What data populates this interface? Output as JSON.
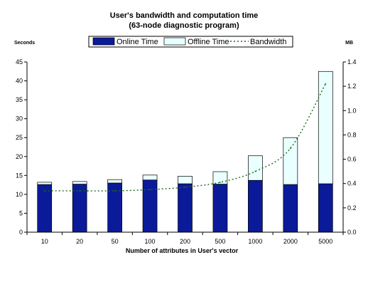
{
  "chart_data": {
    "type": "bar",
    "title": [
      "User's bandwidth and computation time",
      "(63-node diagnostic program)"
    ],
    "xlabel": "Number of attributes in User's vector",
    "ylabel_left": "Seconds",
    "ylabel_right": "MB",
    "categories": [
      "10",
      "20",
      "50",
      "100",
      "200",
      "500",
      "1000",
      "2000",
      "5000"
    ],
    "stacked": true,
    "ylim_left": [
      0,
      45
    ],
    "ylim_right": [
      0,
      1.4
    ],
    "yticks_left": [
      "0",
      "5",
      "10",
      "15",
      "20",
      "25",
      "30",
      "35",
      "40",
      "45"
    ],
    "yticks_right": [
      "0.0",
      "0.2",
      "0.4",
      "0.6",
      "0.8",
      "1.0",
      "1.2",
      "1.4"
    ],
    "series": [
      {
        "name": "Online Time",
        "axis": "left",
        "kind": "bar",
        "color": "#0a1a99",
        "values": [
          12.6,
          12.7,
          13.0,
          13.8,
          12.8,
          12.7,
          13.7,
          12.6,
          12.8
        ]
      },
      {
        "name": "Offline Time",
        "axis": "left",
        "kind": "bar",
        "color": "#eaffff",
        "values": [
          0.6,
          0.7,
          0.9,
          1.3,
          2.0,
          3.3,
          6.5,
          12.4,
          29.7
        ]
      },
      {
        "name": "Bandwidth",
        "axis": "right",
        "kind": "line",
        "style": "dotted",
        "color": "#1a6b1a",
        "values": [
          0.34,
          0.34,
          0.34,
          0.35,
          0.37,
          0.41,
          0.5,
          0.69,
          1.22
        ]
      }
    ],
    "legend_position": "top",
    "grid": false
  }
}
